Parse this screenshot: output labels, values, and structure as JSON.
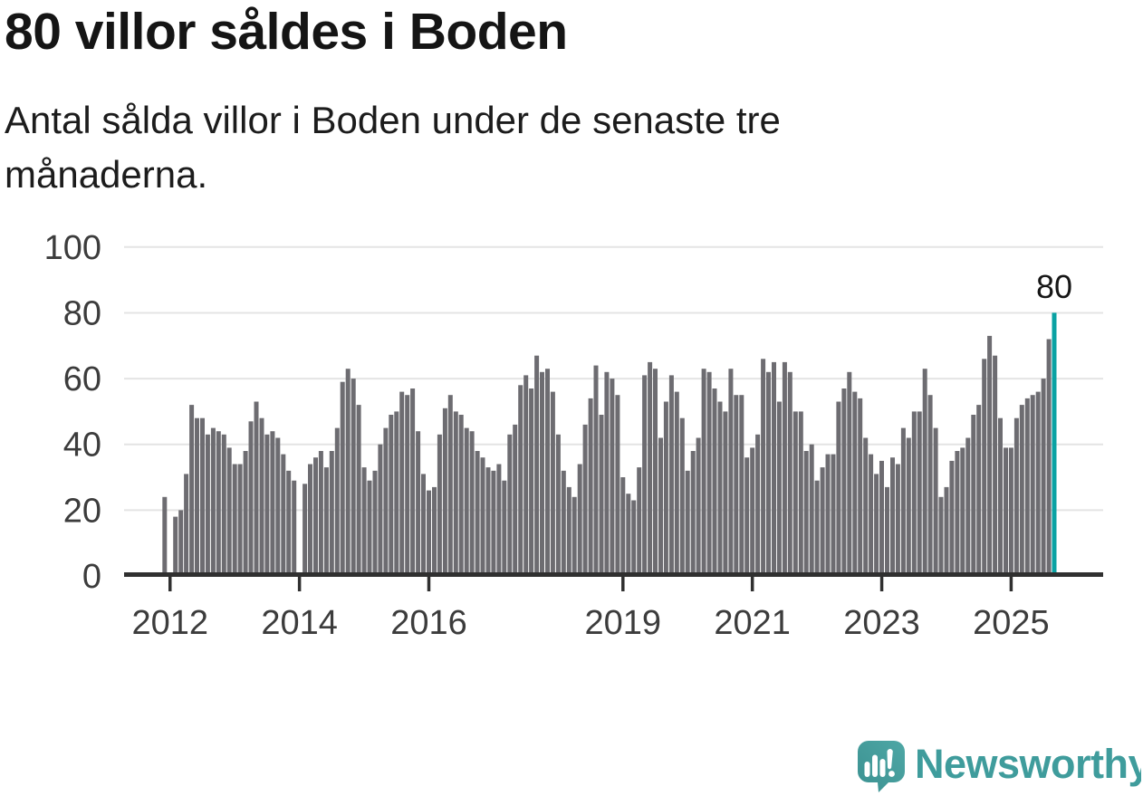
{
  "header": {
    "title": "80 villor såldes i Boden",
    "subtitle": "Antal sålda villor i Boden under de senaste tre månaderna."
  },
  "chart_data": {
    "type": "bar",
    "title": "80 villor såldes i Boden",
    "subtitle": "Antal sålda villor i Boden under de senaste tre månaderna.",
    "x_start": "2011-12",
    "x_end": "2025-09",
    "x_note": "monthly values, zero/missing months rendered as gaps",
    "values": [
      24,
      0,
      18,
      20,
      31,
      52,
      48,
      48,
      43,
      45,
      44,
      43,
      39,
      34,
      34,
      38,
      47,
      53,
      48,
      43,
      44,
      42,
      37,
      32,
      29,
      0,
      28,
      34,
      36,
      38,
      33,
      38,
      45,
      59,
      63,
      60,
      52,
      33,
      29,
      32,
      40,
      45,
      49,
      50,
      56,
      55,
      57,
      44,
      31,
      26,
      27,
      43,
      51,
      55,
      50,
      49,
      45,
      44,
      38,
      36,
      33,
      32,
      34,
      29,
      43,
      46,
      58,
      61,
      57,
      67,
      62,
      63,
      56,
      43,
      32,
      27,
      24,
      34,
      46,
      54,
      64,
      49,
      62,
      60,
      55,
      30,
      25,
      23,
      33,
      61,
      65,
      63,
      42,
      53,
      61,
      56,
      48,
      32,
      38,
      42,
      63,
      62,
      57,
      53,
      50,
      63,
      55,
      55,
      36,
      39,
      43,
      66,
      62,
      65,
      53,
      65,
      62,
      50,
      50,
      38,
      40,
      29,
      33,
      37,
      37,
      53,
      57,
      62,
      56,
      54,
      42,
      37,
      31,
      35,
      27,
      36,
      34,
      45,
      42,
      50,
      50,
      63,
      55,
      45,
      24,
      27,
      35,
      38,
      39,
      42,
      49,
      52,
      66,
      73,
      67,
      48,
      39,
      39,
      48,
      52,
      54,
      55,
      56,
      60,
      72,
      80
    ],
    "highlight_index": 165,
    "annotation_label": "80",
    "ylim": [
      0,
      100
    ],
    "y_ticks": [
      0,
      20,
      40,
      60,
      80,
      100
    ],
    "x_tick_labels": [
      "2012",
      "2014",
      "2016",
      "2019",
      "2021",
      "2023",
      "2025"
    ],
    "x_tick_month_indices": [
      1,
      25,
      49,
      85,
      109,
      133,
      157
    ],
    "grid": true,
    "legend": "none",
    "bar_color": "#6d6c71",
    "highlight_color": "#0aa2a3",
    "grid_color": "#e4e4e4",
    "axis_color": "#303030",
    "tick_label_color": "#3c3c3c",
    "annotation_color": "#161616"
  },
  "footer": {
    "brand": "Newsworthy",
    "brand_color": "#3f9c9c"
  }
}
